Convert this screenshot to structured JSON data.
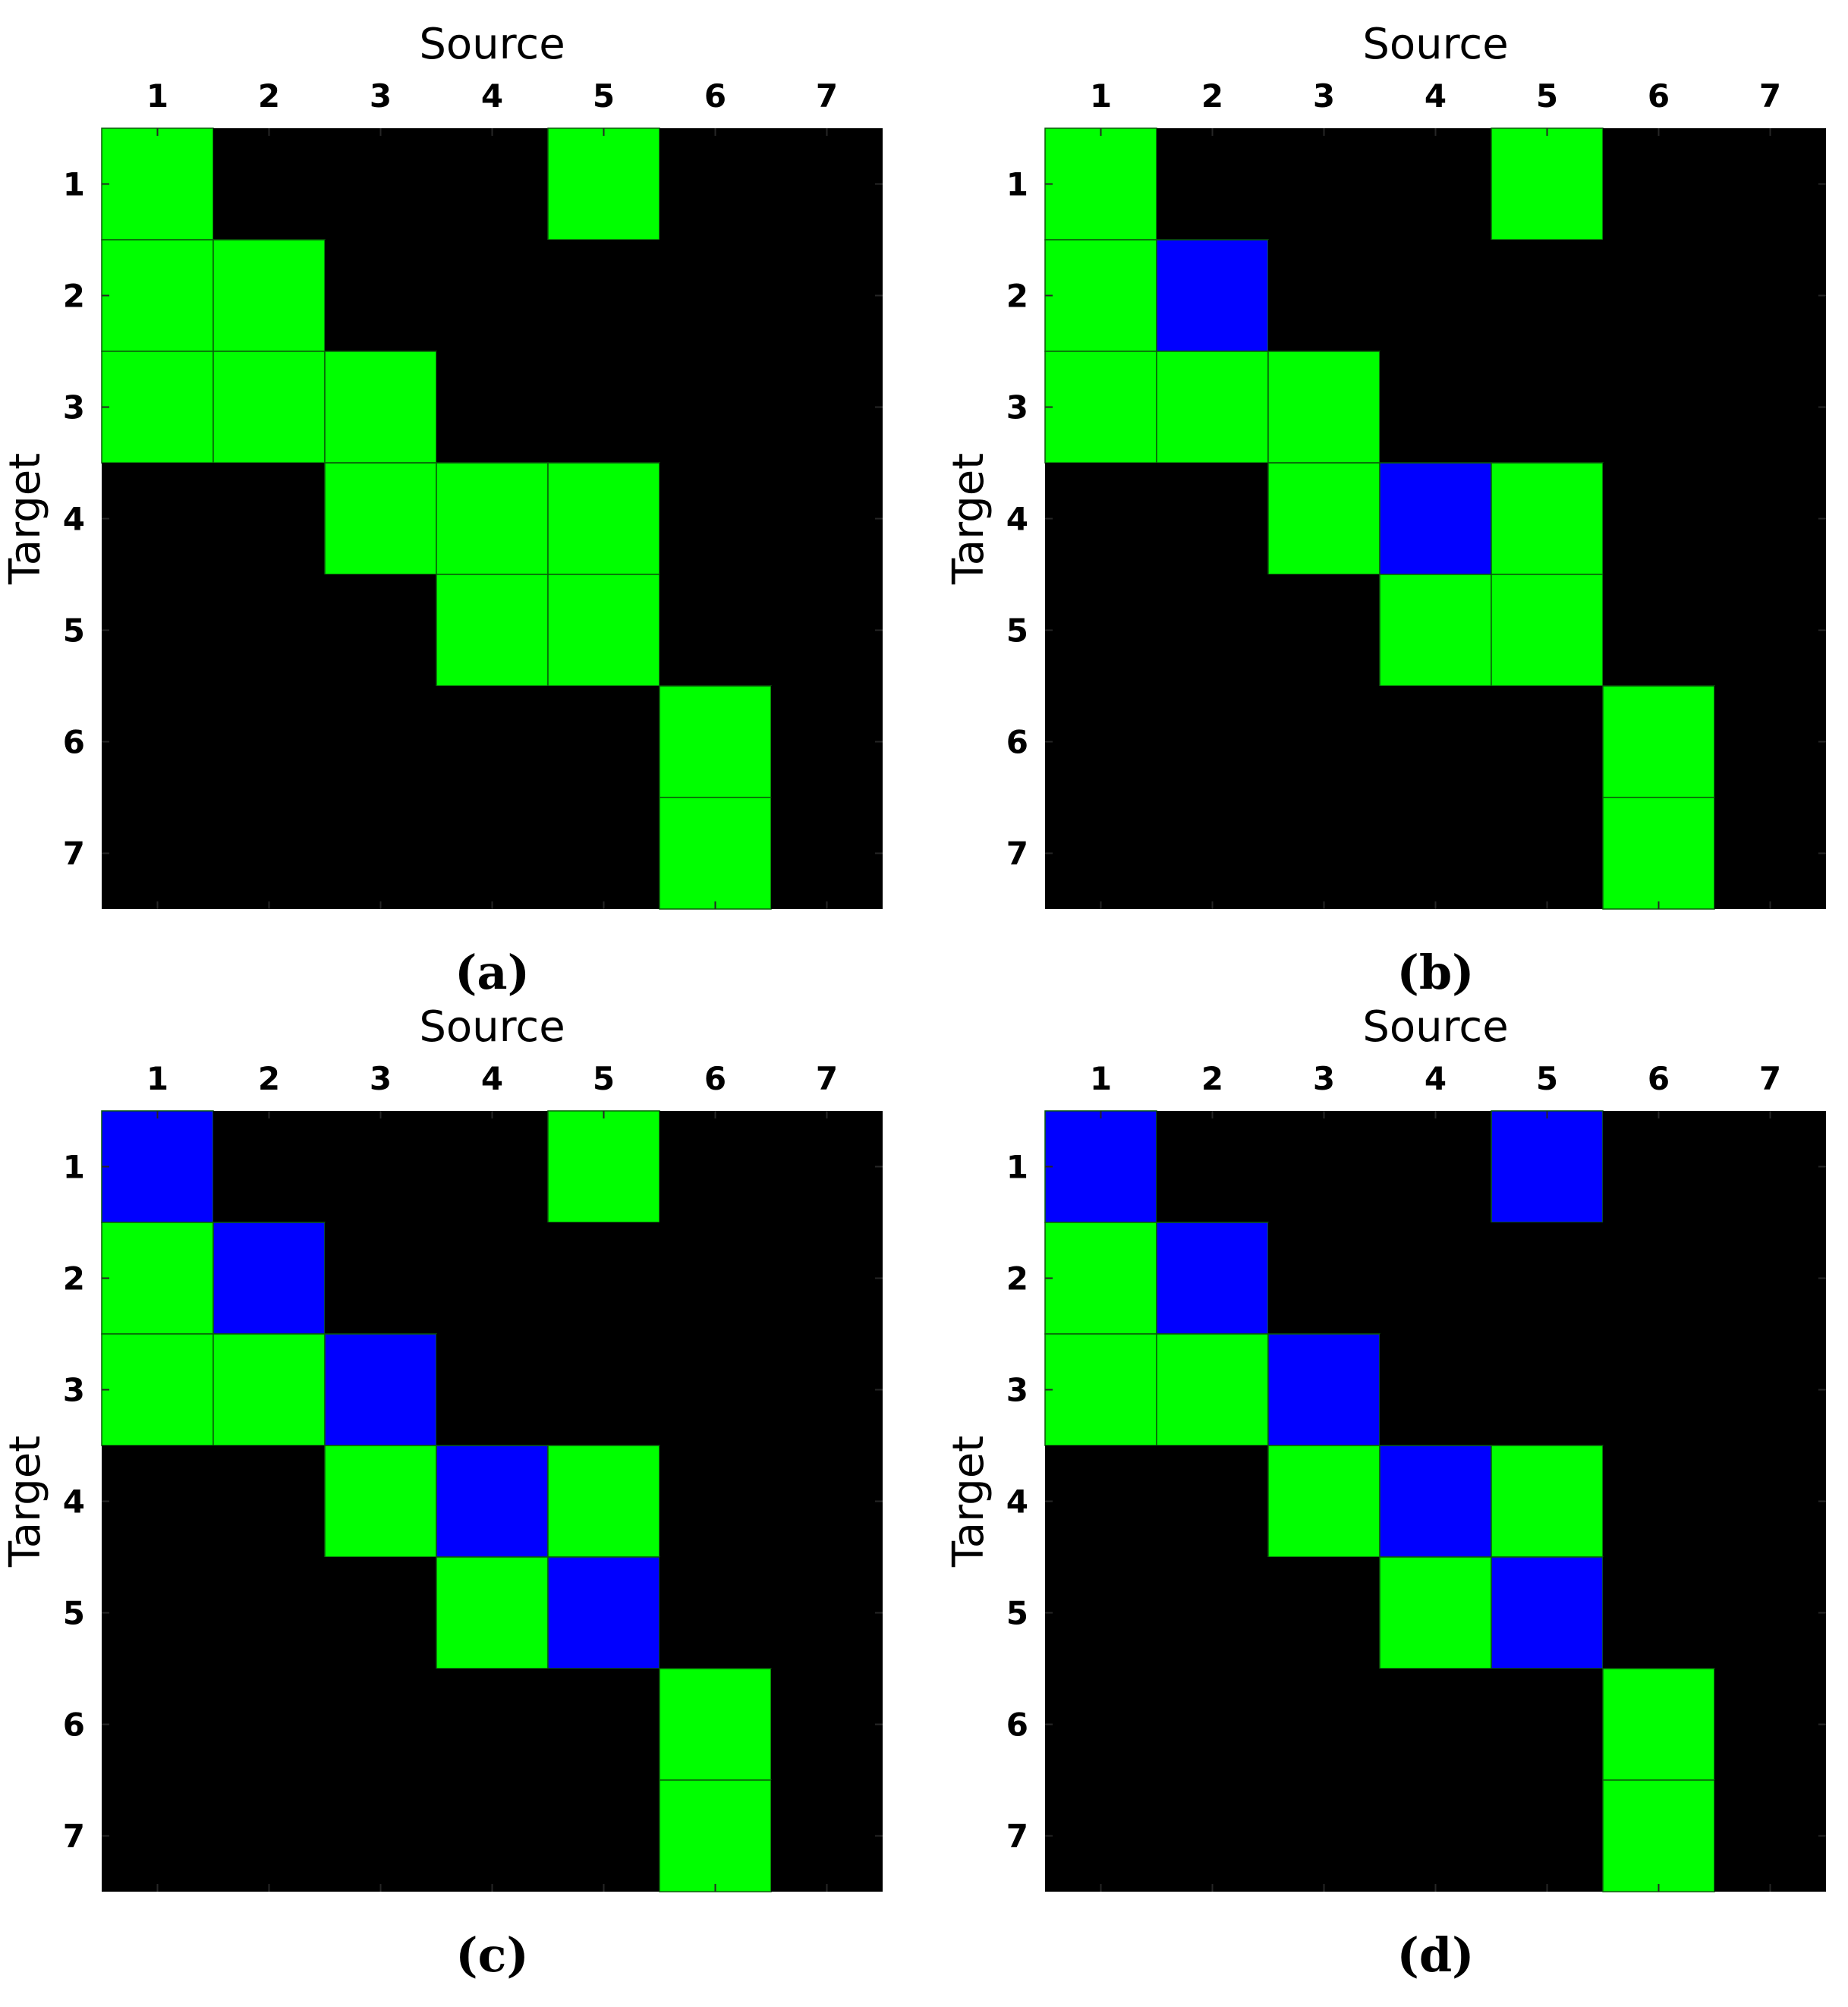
{
  "colors": {
    "one": "#00ff00",
    "two": "#0000ff",
    "zero": "#000000",
    "cell_border": "#0a5a0a"
  },
  "chart_data": [
    {
      "type": "heatmap",
      "caption": "(a)",
      "xlabel": "Source",
      "ylabel": "Target",
      "x_ticks": [
        "1",
        "2",
        "3",
        "4",
        "5",
        "6",
        "7"
      ],
      "y_ticks": [
        "1",
        "2",
        "3",
        "4",
        "5",
        "6",
        "7"
      ],
      "legend": "none",
      "grid": false,
      "matrix": [
        [
          1,
          0,
          0,
          0,
          1,
          0,
          0
        ],
        [
          1,
          1,
          0,
          0,
          0,
          0,
          0
        ],
        [
          1,
          1,
          1,
          0,
          0,
          0,
          0
        ],
        [
          0,
          0,
          1,
          1,
          1,
          0,
          0
        ],
        [
          0,
          0,
          0,
          1,
          1,
          0,
          0
        ],
        [
          0,
          0,
          0,
          0,
          0,
          1,
          0
        ],
        [
          0,
          0,
          0,
          0,
          0,
          1,
          0
        ]
      ]
    },
    {
      "type": "heatmap",
      "caption": "(b)",
      "xlabel": "Source",
      "ylabel": "Target",
      "x_ticks": [
        "1",
        "2",
        "3",
        "4",
        "5",
        "6",
        "7"
      ],
      "y_ticks": [
        "1",
        "2",
        "3",
        "4",
        "5",
        "6",
        "7"
      ],
      "legend": "none",
      "grid": false,
      "matrix": [
        [
          1,
          0,
          0,
          0,
          1,
          0,
          0
        ],
        [
          1,
          2,
          0,
          0,
          0,
          0,
          0
        ],
        [
          1,
          1,
          1,
          0,
          0,
          0,
          0
        ],
        [
          0,
          0,
          1,
          2,
          1,
          0,
          0
        ],
        [
          0,
          0,
          0,
          1,
          1,
          0,
          0
        ],
        [
          0,
          0,
          0,
          0,
          0,
          1,
          0
        ],
        [
          0,
          0,
          0,
          0,
          0,
          1,
          0
        ]
      ]
    },
    {
      "type": "heatmap",
      "caption": "(c)",
      "xlabel": "Source",
      "ylabel": "Target",
      "x_ticks": [
        "1",
        "2",
        "3",
        "4",
        "5",
        "6",
        "7"
      ],
      "y_ticks": [
        "1",
        "2",
        "3",
        "4",
        "5",
        "6",
        "7"
      ],
      "legend": "none",
      "grid": false,
      "matrix": [
        [
          2,
          0,
          0,
          0,
          1,
          0,
          0
        ],
        [
          1,
          2,
          0,
          0,
          0,
          0,
          0
        ],
        [
          1,
          1,
          2,
          0,
          0,
          0,
          0
        ],
        [
          0,
          0,
          1,
          2,
          1,
          0,
          0
        ],
        [
          0,
          0,
          0,
          1,
          2,
          0,
          0
        ],
        [
          0,
          0,
          0,
          0,
          0,
          1,
          0
        ],
        [
          0,
          0,
          0,
          0,
          0,
          1,
          0
        ]
      ]
    },
    {
      "type": "heatmap",
      "caption": "(d)",
      "xlabel": "Source",
      "ylabel": "Target",
      "x_ticks": [
        "1",
        "2",
        "3",
        "4",
        "5",
        "6",
        "7"
      ],
      "y_ticks": [
        "1",
        "2",
        "3",
        "4",
        "5",
        "6",
        "7"
      ],
      "legend": "none",
      "grid": false,
      "matrix": [
        [
          2,
          0,
          0,
          0,
          2,
          0,
          0
        ],
        [
          1,
          2,
          0,
          0,
          0,
          0,
          0
        ],
        [
          1,
          1,
          2,
          0,
          0,
          0,
          0
        ],
        [
          0,
          0,
          1,
          2,
          1,
          0,
          0
        ],
        [
          0,
          0,
          0,
          1,
          2,
          0,
          0
        ],
        [
          0,
          0,
          0,
          0,
          0,
          1,
          0
        ],
        [
          0,
          0,
          0,
          0,
          0,
          1,
          0
        ]
      ]
    }
  ]
}
